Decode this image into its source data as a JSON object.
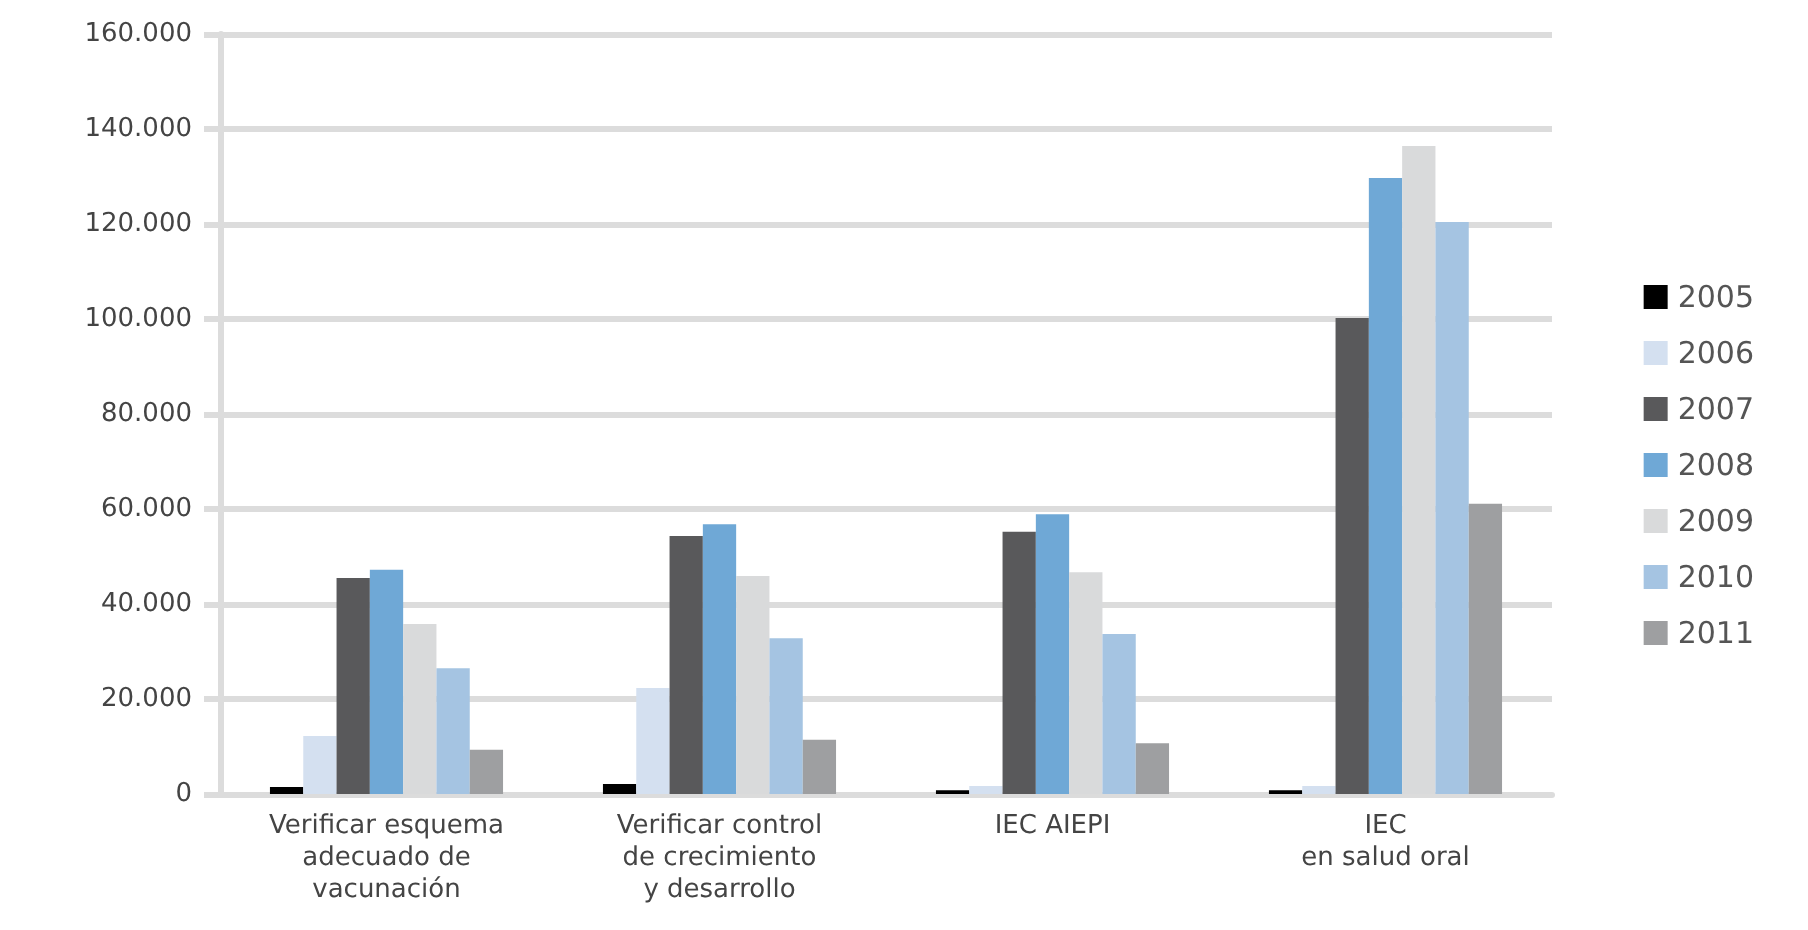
{
  "chart_data": {
    "type": "bar",
    "categories": [
      "Verificar esquema\nadecuado de\nvacunación",
      "Verificar control\nde crecimiento\ny desarrollo",
      "IEC AIEPI",
      "IEC\nen salud oral"
    ],
    "series": [
      {
        "name": "2005",
        "color": "#000000",
        "values": [
          1500,
          2100,
          800,
          800
        ]
      },
      {
        "name": "2006",
        "color": "#d4e0f0",
        "values": [
          12200,
          22300,
          1700,
          1700
        ]
      },
      {
        "name": "2007",
        "color": "#59595b",
        "values": [
          45500,
          54300,
          55200,
          100200
        ]
      },
      {
        "name": "2008",
        "color": "#6fa8d6",
        "values": [
          47200,
          56800,
          58900,
          129700
        ]
      },
      {
        "name": "2009",
        "color": "#d9dadb",
        "values": [
          35800,
          45900,
          46700,
          136400
        ]
      },
      {
        "name": "2010",
        "color": "#a5c4e2",
        "values": [
          26500,
          32800,
          33700,
          120400
        ]
      },
      {
        "name": "2011",
        "color": "#9e9fa1",
        "values": [
          9300,
          11400,
          10700,
          61100
        ]
      }
    ],
    "ylim": [
      0,
      160000
    ],
    "yticks": [
      {
        "value": 0,
        "label": "0"
      },
      {
        "value": 20000,
        "label": "20.000"
      },
      {
        "value": 40000,
        "label": "40.000"
      },
      {
        "value": 60000,
        "label": "60.000"
      },
      {
        "value": 80000,
        "label": "80.000"
      },
      {
        "value": 100000,
        "label": "100.000"
      },
      {
        "value": 120000,
        "label": "120.000"
      },
      {
        "value": 140000,
        "label": "140.000"
      },
      {
        "value": 160000,
        "label": "160.000"
      }
    ],
    "grid": "y",
    "legend": "right"
  }
}
